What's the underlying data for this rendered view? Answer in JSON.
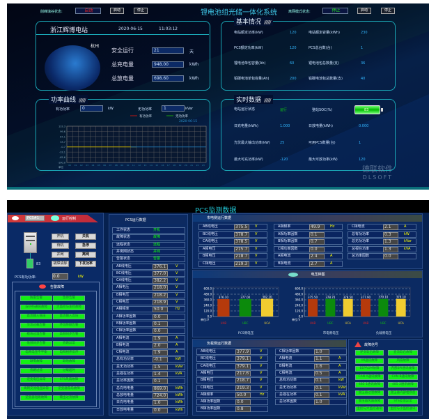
{
  "top": {
    "peak_label": "削峰填谷状态:",
    "peak_status": "启动",
    "peak_start": "启动",
    "peak_stop": "停止",
    "title": "锂电池组光储一体化系统",
    "offgrid_label": "离网模式状态:",
    "offgrid_status": "停止",
    "offgrid_start": "启动",
    "offgrid_stop": "停止",
    "station": {
      "name": "浙江辉博电站",
      "date": "2020-06-15",
      "time": "11:03:12",
      "city": "杭州",
      "stats": [
        {
          "label": "安全运行",
          "value": "21",
          "unit": "天"
        },
        {
          "label": "总充电量",
          "value": "948.00",
          "unit": "kWh"
        },
        {
          "label": "总放电量",
          "value": "698.60",
          "unit": "kWh"
        }
      ]
    },
    "basic": {
      "title": "基本情况",
      "deco": "///////",
      "items": [
        {
          "label": "电站额定功率(kW)",
          "value": "120"
        },
        {
          "label": "电站额定容量(kWh)",
          "value": "230"
        },
        {
          "label": "PCS额定功率(kW)",
          "value": "120"
        },
        {
          "label": "PCS总台数(台)",
          "value": "1"
        },
        {
          "label": "锂电池单包容量(Ah)",
          "value": "60"
        },
        {
          "label": "锂电池包总数量(支)",
          "value": "36"
        },
        {
          "label": "铅碳电池单包容量(Ah)",
          "value": "200"
        },
        {
          "label": "铅碳电池包总数量(支)",
          "value": "40"
        }
      ]
    },
    "power": {
      "title": "功率曲线",
      "deco": "///////",
      "active_label": "有功功率",
      "active_value": "0",
      "active_unit": "kW",
      "reactive_label": "无功功率",
      "reactive_value": "1",
      "reactive_unit": "kVar"
    },
    "realtime": {
      "title": "实时数据",
      "deco": "///////",
      "soc_label": "整站SOC(%)",
      "soc": 83,
      "items": [
        {
          "label": "电站运行状态",
          "value": "运行"
        },
        {
          "label": "日充电量(kWh)",
          "value": "1.000"
        },
        {
          "label": "日放电量(kWh)",
          "value": "0.000"
        },
        {
          "label": "光伏最大输出功率(kW)",
          "value": "25"
        },
        {
          "label": "可用PCS数量(台)",
          "value": "1"
        },
        {
          "label": "最大可充功率(kW)",
          "value": "-120"
        },
        {
          "label": "最大可放功率(kW)",
          "value": "120"
        }
      ]
    },
    "watermark": {
      "cn": "德联软件",
      "en": "DLSOFT"
    }
  },
  "bottom": {
    "title": "PCS监测数据",
    "control": {
      "pcs": "PCS#1",
      "title": "运行控制",
      "battery": "83",
      "buttons": [
        "开机",
        "关机",
        "待机",
        "急停",
        "并网",
        "离网",
        "故障清除",
        "下发功率"
      ],
      "power_label": "PCS有功功率:",
      "power_value": "0.0",
      "power_unit": "kW"
    },
    "alarms": {
      "title": "告警故障",
      "items": [
        "防雷告警",
        "急停告警",
        "与EMS通讯故障",
        "大监控与主控故障",
        "直流输入低压",
        "直流输入高压",
        "交流过载告警",
        "环温降额告警",
        "模块过温告警",
        "高频同步告警",
        "低频同步告警",
        "旁路异常",
        "电网电压不平衡",
        "电网相序反序",
        "缺零故障",
        "缺地故障",
        "旁路过流",
        "过载超时",
        "逆变电压异常",
        "STS风扇故障",
        "离网交流电压异常",
        "逆变器孤岛故障",
        "逆变器短路故障",
        "输出过流故障"
      ]
    },
    "pcs_data": {
      "title": "PCS运行数据",
      "status": [
        {
          "label": "工作状态",
          "value": "开机"
        },
        {
          "label": "故障状态",
          "value": "故障"
        },
        {
          "label": "远程状态",
          "value": "远程"
        },
        {
          "label": "并离网状态",
          "value": "并网"
        },
        {
          "label": "告警状态",
          "value": "告警"
        }
      ],
      "rows": [
        {
          "label": "AB线电压",
          "value": "376.1",
          "unit": "V"
        },
        {
          "label": "BC线电压",
          "value": "377.0",
          "unit": "V"
        },
        {
          "label": "CA线电压",
          "value": "382.2",
          "unit": "V"
        },
        {
          "label": "A相电压",
          "value": "218.0",
          "unit": "V"
        },
        {
          "label": "B相电压",
          "value": "218.2",
          "unit": "V"
        },
        {
          "label": "C相电压",
          "value": "218.9",
          "unit": "V"
        },
        {
          "label": "A相频率",
          "value": "50.0",
          "unit": "Hz"
        },
        {
          "label": "A相功率因数",
          "value": "0.0",
          "unit": ""
        },
        {
          "label": "B相功率因数",
          "value": "0.1",
          "unit": ""
        },
        {
          "label": "C相功率因数",
          "value": "0.0",
          "unit": ""
        },
        {
          "label": "A相电流",
          "value": "1.9",
          "unit": "A"
        },
        {
          "label": "B相电流",
          "value": "2.0",
          "unit": "A"
        },
        {
          "label": "C相电流",
          "value": "1.9",
          "unit": "A"
        },
        {
          "label": "总有功功率",
          "value": "-0.1",
          "unit": "kW"
        },
        {
          "label": "总无功功率",
          "value": "1.5",
          "unit": "kVar"
        },
        {
          "label": "总视在功率",
          "value": "1.4",
          "unit": "kVA"
        },
        {
          "label": "总功率因数",
          "value": "0.1",
          "unit": ""
        },
        {
          "label": "总充电电量",
          "value": "869.0",
          "unit": "kWh"
        },
        {
          "label": "总放电电量",
          "value": "724.0",
          "unit": "kWh"
        },
        {
          "label": "日充电电量",
          "value": "1.0",
          "unit": "kWh"
        },
        {
          "label": "日放电电量",
          "value": "0.0",
          "unit": "kWh"
        }
      ]
    },
    "grid_data": {
      "title": "市电侧运行数据",
      "columns": [
        [
          {
            "label": "AB线电压",
            "value": "375.5",
            "unit": "V"
          },
          {
            "label": "BC线电压",
            "value": "378.7",
            "unit": "V"
          },
          {
            "label": "CA线电压",
            "value": "378.5",
            "unit": "V"
          },
          {
            "label": "A相电压",
            "value": "215.7",
            "unit": "V"
          },
          {
            "label": "B相电压",
            "value": "218.7",
            "unit": "V"
          },
          {
            "label": "C相电压",
            "value": "219.3",
            "unit": "V"
          }
        ],
        [
          {
            "label": "A相频率",
            "value": "49.9",
            "unit": "Hz"
          },
          {
            "label": "A相功率因数",
            "value": "0.1",
            "unit": ""
          },
          {
            "label": "B相功率因数",
            "value": "0.7",
            "unit": ""
          },
          {
            "label": "C相功率因数",
            "value": "0.0",
            "unit": ""
          },
          {
            "label": "A相电流",
            "value": "2.4",
            "unit": "A"
          },
          {
            "label": "B相电流",
            "value": "2.7",
            "unit": "A"
          }
        ],
        [
          {
            "label": "C相电流",
            "value": "2.1",
            "unit": "A"
          },
          {
            "label": "总有功功率",
            "value": "0.3",
            "unit": "kW"
          },
          {
            "label": "总无功功率",
            "value": "1.3",
            "unit": "kVar"
          },
          {
            "label": "总视在功率",
            "value": "1.3",
            "unit": "kVA"
          },
          {
            "label": "总功率因数",
            "value": "0.0",
            "unit": ""
          }
        ]
      ]
    },
    "bar_title": "电压棒图",
    "load_data": {
      "title": "负载侧运行数据",
      "columns": [
        [
          {
            "label": "AB线电压",
            "value": "377.9",
            "unit": "V"
          },
          {
            "label": "BC线电压",
            "value": "379.1",
            "unit": "V"
          },
          {
            "label": "CA线电压",
            "value": "379.1",
            "unit": "V"
          },
          {
            "label": "A相电压",
            "value": "217.6",
            "unit": "V"
          },
          {
            "label": "B相电压",
            "value": "218.7",
            "unit": "V"
          },
          {
            "label": "C相电压",
            "value": "219.3",
            "unit": "V"
          },
          {
            "label": "A相频率",
            "value": "50.0",
            "unit": "Hz"
          },
          {
            "label": "A相功率因数",
            "value": "0.0",
            "unit": ""
          },
          {
            "label": "B相功率因数",
            "value": "0.8",
            "unit": ""
          }
        ],
        [
          {
            "label": "C相功率因数",
            "value": "1.0",
            "unit": ""
          },
          {
            "label": "A相电流",
            "value": "1.1",
            "unit": "A"
          },
          {
            "label": "B相电流",
            "value": "1.6",
            "unit": "A"
          },
          {
            "label": "C相电流",
            "value": "0.5",
            "unit": "A"
          },
          {
            "label": "总有功功率",
            "value": "0.1",
            "unit": "kW"
          },
          {
            "label": "总无功功率",
            "value": "0.1",
            "unit": "kVar"
          },
          {
            "label": "总视在功率",
            "value": "0.1",
            "unit": "kVA"
          },
          {
            "label": "总功率因数",
            "value": "1.0",
            "unit": ""
          }
        ]
      ]
    },
    "faults": {
      "title": "故障信号",
      "items": [
        "逆变软启故障",
        "直流软启故障",
        "IM通讯故障",
        "风扇故障",
        "EEPROM故障",
        "内部SPI通讯故障",
        "CAN A通讯故障",
        "CAN B通讯故障",
        "485 1通讯故障",
        "485 2通讯故障",
        "变压器过温故障",
        "变压器内部相序反",
        "变压器风扇故障",
        "STS反馈异常",
        "主控与大监控通讯",
        "主控与小监控通讯"
      ]
    }
  },
  "chart_data": [
    {
      "type": "line",
      "legend": [
        "有功功率",
        "无功功率"
      ],
      "legend_colors": [
        "#a01818",
        "#148a14"
      ],
      "date": "2020-06-15",
      "ytick_labels": [
        "133.3",
        "99.6",
        "67.1",
        "33.7",
        "-0.7",
        "-33.1",
        "-65.6",
        "-100.0"
      ],
      "unit_label": "单位",
      "ylim": [
        -100,
        133.3
      ],
      "series": [
        {
          "name": "有功功率",
          "color": "#c8b000",
          "x_range": [
            "00",
            "11"
          ],
          "y": 0
        },
        {
          "name": "无功功率",
          "color": "#1e6fa8",
          "x_range": [
            "11",
            "23"
          ],
          "y": 0
        }
      ]
    },
    {
      "type": "bar",
      "ylim": [
        0,
        600
      ],
      "yticks": [
        "0.0",
        "120.0",
        "240.0",
        "360.0",
        "480.0",
        "600.0"
      ],
      "unit_label": "单位:V",
      "categories": [
        "UAB",
        "UBC",
        "UCA"
      ],
      "colors": [
        "#b53a0c",
        "#0c8a0c",
        "#f0cc30"
      ],
      "xlabel": "PCS侧电压",
      "values": [
        376.1,
        377.0,
        382.2
      ]
    },
    {
      "type": "bar",
      "ylim": [
        0,
        600
      ],
      "yticks": [
        "0.0",
        "120.0",
        "240.0",
        "360.0",
        "480.0",
        "600.0"
      ],
      "unit_label": "单位:V",
      "categories": [
        "UAB",
        "UBC",
        "UCA",
        "UAB",
        "UBC",
        "UCA"
      ],
      "colors": [
        "#b53a0c",
        "#0c8a0c",
        "#f0cc30",
        "#b53a0c",
        "#0c8a0c",
        "#f0cc30"
      ],
      "group_labels": [
        "市电侧电压",
        "负载侧电压"
      ],
      "values": [
        375.5,
        378.7,
        378.5,
        377.9,
        379.1,
        379.1
      ]
    }
  ]
}
